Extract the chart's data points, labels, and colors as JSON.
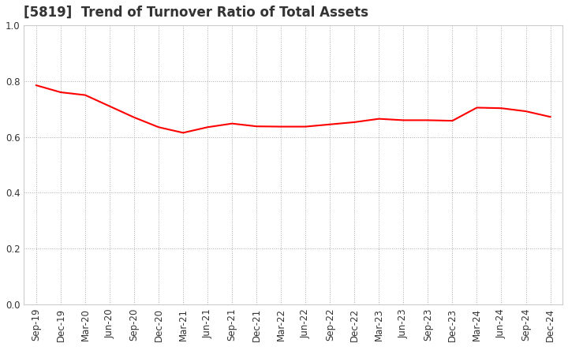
{
  "title": "[5819]  Trend of Turnover Ratio of Total Assets",
  "labels": [
    "Sep-19",
    "Dec-19",
    "Mar-20",
    "Jun-20",
    "Sep-20",
    "Dec-20",
    "Mar-21",
    "Jun-21",
    "Sep-21",
    "Dec-21",
    "Mar-22",
    "Jun-22",
    "Sep-22",
    "Dec-22",
    "Mar-23",
    "Jun-23",
    "Sep-23",
    "Dec-23",
    "Mar-24",
    "Jun-24",
    "Sep-24",
    "Dec-24"
  ],
  "values": [
    0.785,
    0.76,
    0.75,
    0.71,
    0.67,
    0.635,
    0.615,
    0.635,
    0.648,
    0.638,
    0.637,
    0.637,
    0.645,
    0.653,
    0.665,
    0.66,
    0.66,
    0.658,
    0.705,
    0.703,
    0.692,
    0.672
  ],
  "line_color": "#FF0000",
  "line_width": 1.5,
  "background_color": "#ffffff",
  "grid_color": "#aaaaaa",
  "ylim": [
    0.0,
    1.0
  ],
  "yticks": [
    0.0,
    0.2,
    0.4,
    0.6,
    0.8,
    1.0
  ],
  "title_fontsize": 12,
  "tick_fontsize": 8.5,
  "title_color": "#333333"
}
